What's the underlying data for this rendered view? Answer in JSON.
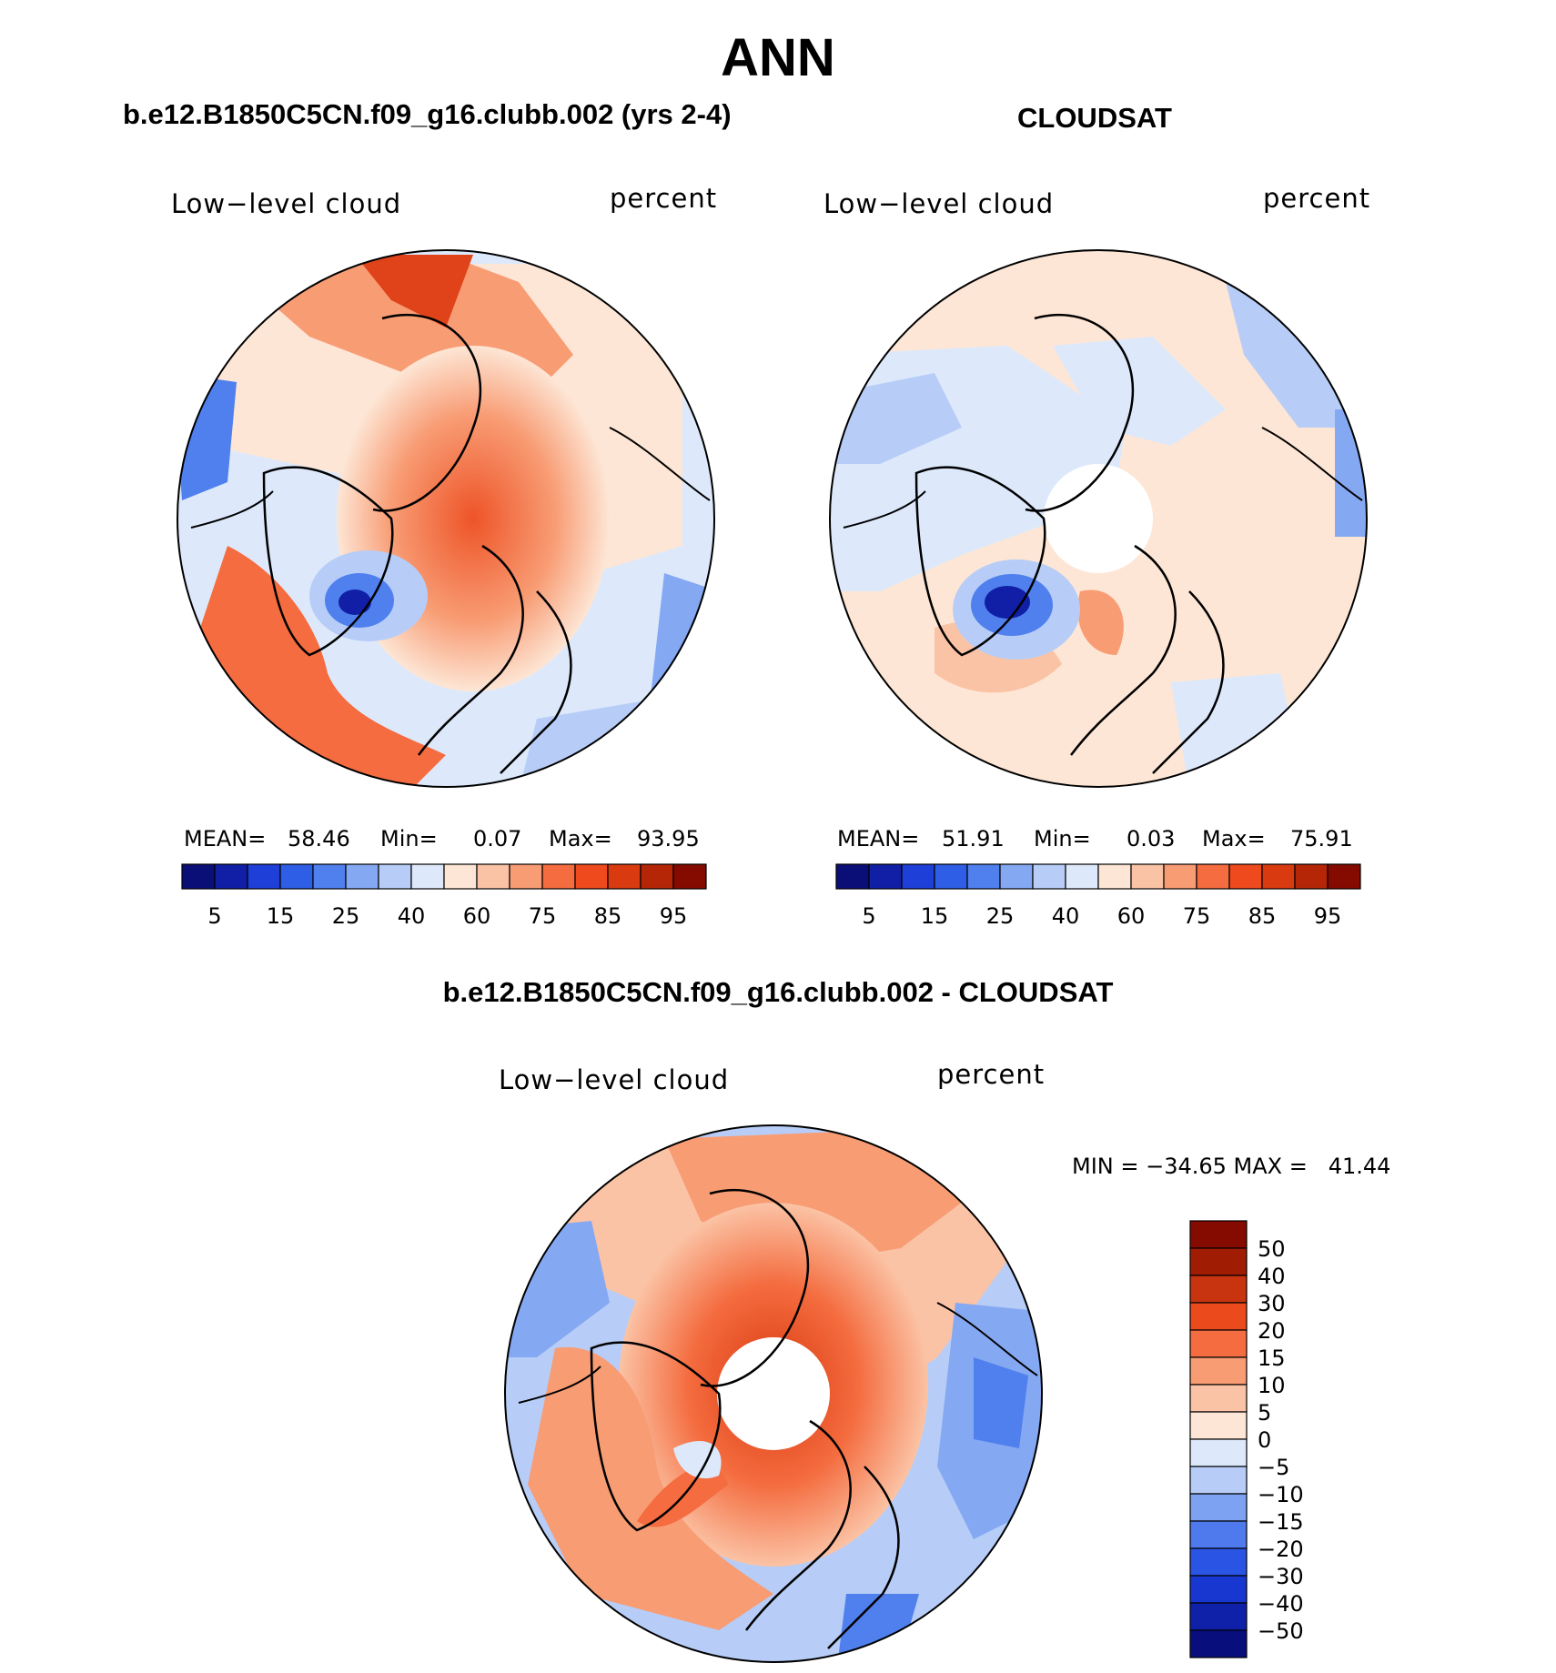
{
  "title": "ANN",
  "panels": [
    {
      "title": "b.e12.B1850C5CN.f09_g16.clubb.002 (yrs 2-4)",
      "left_label": "Low−level cloud",
      "right_label": "percent",
      "stats": {
        "mean_label": "MEAN=",
        "mean": "58.46",
        "min_label": "Min=",
        "min": "0.07",
        "max_label": "Max=",
        "max": "93.95"
      }
    },
    {
      "title": "CLOUDSAT",
      "left_label": "Low−level cloud",
      "right_label": "percent",
      "stats": {
        "mean_label": "MEAN=",
        "mean": "51.91",
        "min_label": "Min=",
        "min": "0.03",
        "max_label": "Max=",
        "max": "75.91"
      }
    },
    {
      "title": "b.e12.B1850C5CN.f09_g16.clubb.002 - CLOUDSAT",
      "left_label": "Low−level cloud",
      "right_label": "percent",
      "minmax": "MIN = −34.65 MAX =   41.44"
    }
  ],
  "colorbar_abs": {
    "colors": [
      "#0a0f78",
      "#101fa5",
      "#1f3fd9",
      "#2f5ee6",
      "#4f80ee",
      "#85a8f2",
      "#b7cdf7",
      "#dde9fb",
      "#fde6d5",
      "#fbc3a5",
      "#f89c74",
      "#f46c3f",
      "#ee4a1e",
      "#d93a10",
      "#b52607",
      "#850a00"
    ],
    "tick_labels": [
      "5",
      "15",
      "25",
      "40",
      "60",
      "75",
      "85",
      "95"
    ]
  },
  "colorbar_diff": {
    "colors": [
      "#080f7c",
      "#0f21a8",
      "#1836d0",
      "#2a54e4",
      "#4e7aed",
      "#7ea2f2",
      "#b7cdf7",
      "#dde9fb",
      "#fde6d5",
      "#fbc3a5",
      "#f89c74",
      "#f46c3f",
      "#ea4a1c",
      "#c93410",
      "#a01d04",
      "#850a00"
    ],
    "tick_labels": [
      "50",
      "40",
      "30",
      "20",
      "15",
      "10",
      "5",
      "0",
      "−5",
      "−10",
      "−15",
      "−20",
      "−30",
      "−40",
      "−50"
    ]
  }
}
